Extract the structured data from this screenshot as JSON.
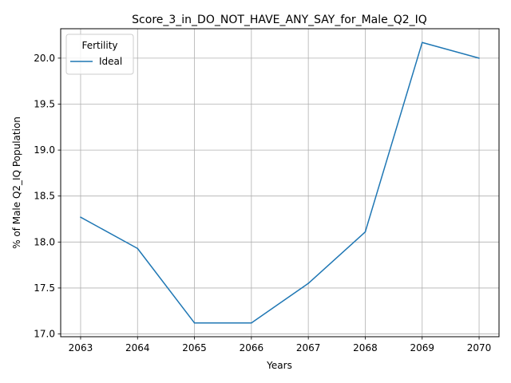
{
  "chart_data": {
    "type": "line",
    "title": "Score_3_in_DO_NOT_HAVE_ANY_SAY_for_Male_Q2_IQ",
    "xlabel": "Years",
    "ylabel": "% of Male Q2_IQ Population",
    "x": [
      2063,
      2064,
      2065,
      2066,
      2067,
      2068,
      2069,
      2070
    ],
    "series": [
      {
        "name": "Ideal",
        "color": "#1f77b4",
        "values": [
          18.27,
          17.93,
          17.12,
          17.12,
          17.55,
          18.11,
          20.17,
          20.0
        ]
      }
    ],
    "xticks": [
      "2063",
      "2064",
      "2065",
      "2066",
      "2067",
      "2068",
      "2069",
      "2070"
    ],
    "yticks": [
      "17.0",
      "17.5",
      "18.0",
      "18.5",
      "19.0",
      "19.5",
      "20.0"
    ],
    "ylim": [
      16.97,
      20.32
    ],
    "xlim": [
      2062.65,
      2070.35
    ],
    "grid": true,
    "legend": {
      "title": "Fertility",
      "placement": "top-left"
    }
  }
}
